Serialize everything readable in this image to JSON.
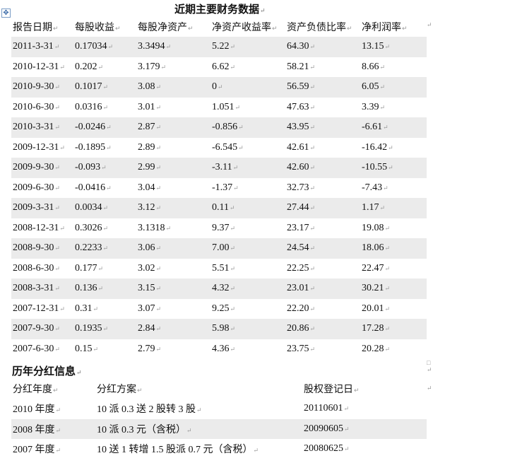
{
  "title": "近期主要财务数据",
  "financial": {
    "headers": [
      "报告日期",
      "每股收益",
      "每股净资产",
      "净资产收益率",
      "资产负债比率",
      "净利润率"
    ],
    "rows": [
      [
        "2011-3-31",
        "0.17034",
        "3.3494",
        "5.22",
        "64.30",
        "13.15"
      ],
      [
        "2010-12-31",
        "0.202",
        "3.179",
        "6.62",
        "58.21",
        "8.66"
      ],
      [
        "2010-9-30",
        "0.1017",
        "3.08",
        "0",
        "56.59",
        "6.05"
      ],
      [
        "2010-6-30",
        "0.0316",
        "3.01",
        "1.051",
        "47.63",
        "3.39"
      ],
      [
        "2010-3-31",
        "-0.0246",
        "2.87",
        "-0.856",
        "43.95",
        "-6.61"
      ],
      [
        "2009-12-31",
        "-0.1895",
        "2.89",
        "-6.545",
        "42.61",
        "-16.42"
      ],
      [
        "2009-9-30",
        "-0.093",
        "2.99",
        "-3.11",
        "42.60",
        "-10.55"
      ],
      [
        "2009-6-30",
        "-0.0416",
        "3.04",
        "-1.37",
        "32.73",
        "-7.43"
      ],
      [
        "2009-3-31",
        "0.0034",
        "3.12",
        "0.11",
        "27.44",
        "1.17"
      ],
      [
        "2008-12-31",
        "0.3026",
        "3.1318",
        "9.37",
        "23.17",
        "19.08"
      ],
      [
        "2008-9-30",
        "0.2233",
        "3.06",
        "7.00",
        "24.54",
        "18.06"
      ],
      [
        "2008-6-30",
        "0.177",
        "3.02",
        "5.51",
        "22.25",
        "22.47"
      ],
      [
        "2008-3-31",
        "0.136",
        "3.15",
        "4.32",
        "23.01",
        "30.21"
      ],
      [
        "2007-12-31",
        "0.31",
        "3.07",
        "9.25",
        "22.20",
        "20.01"
      ],
      [
        "2007-9-30",
        "0.1935",
        "2.84",
        "5.98",
        "20.86",
        "17.28"
      ],
      [
        "2007-6-30",
        "0.15",
        "2.79",
        "4.36",
        "23.75",
        "20.28"
      ]
    ]
  },
  "dividend": {
    "title": "历年分红信息",
    "headers": [
      "分红年度",
      "分红方案",
      "股权登记日"
    ],
    "rows": [
      [
        "2010 年度",
        "10 派 0.3 送 2 股转 3 股",
        "20110601"
      ],
      [
        "2008 年度",
        "10 派 0.3 元（含税）",
        "20090605"
      ],
      [
        "2007 年度",
        "10 送 1 转增 1.5 股派 0.7 元（含税）",
        "20080625"
      ]
    ]
  }
}
